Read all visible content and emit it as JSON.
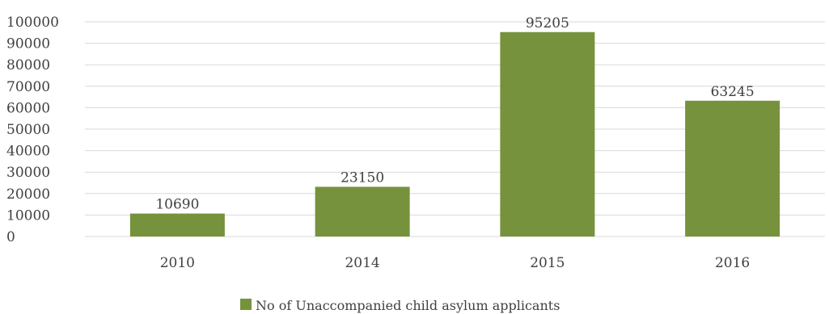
{
  "chart_data": {
    "type": "bar",
    "title": "",
    "xlabel": "",
    "ylabel": "",
    "categories": [
      "2010",
      "2014",
      "2015",
      "2016"
    ],
    "series": [
      {
        "name": "No of Unaccompanied child asylum applicants",
        "values": [
          10690,
          23150,
          95205,
          63245
        ],
        "color": "#76923c"
      }
    ],
    "ylim": [
      0,
      100000
    ],
    "y_ticks": [
      0,
      10000,
      20000,
      30000,
      40000,
      50000,
      60000,
      70000,
      80000,
      90000,
      100000
    ],
    "grid": true,
    "grid_color": "#d9d9d9",
    "legend_position": "bottom",
    "data_labels": true
  }
}
